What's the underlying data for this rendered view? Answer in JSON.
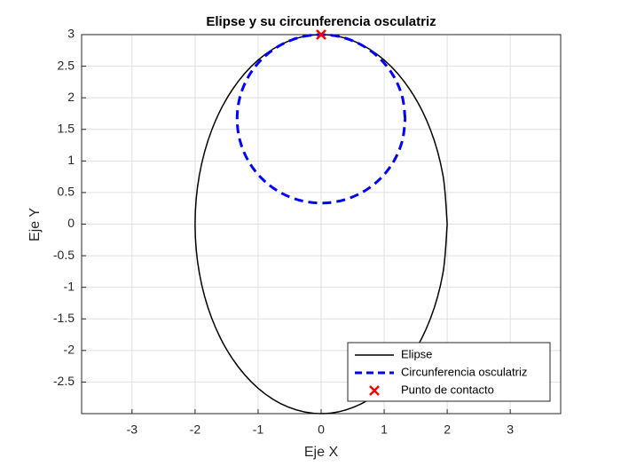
{
  "chart_data": {
    "type": "line",
    "title": "Elipse y su circunferencia osculatriz",
    "xlabel": "Eje X",
    "ylabel": "Eje Y",
    "xlim": [
      -3.8,
      3.8
    ],
    "ylim": [
      -3,
      3
    ],
    "xticks": [
      -3,
      -2,
      -1,
      0,
      1,
      2,
      3
    ],
    "yticks": [
      -2.5,
      -2,
      -1.5,
      -1,
      -0.5,
      0,
      0.5,
      1,
      1.5,
      2,
      2.5,
      3
    ],
    "grid": true,
    "legend": "lower right",
    "series": [
      {
        "name": "Elipse",
        "color": "#000000",
        "style": "solid",
        "width": 1.5,
        "x": [
          2,
          1.932,
          1.732,
          1.414,
          1,
          0.518,
          0,
          -0.518,
          -1,
          -1.414,
          -1.732,
          -1.932,
          -2,
          -1.932,
          -1.732,
          -1.414,
          -1,
          -0.518,
          0,
          0.518,
          1,
          1.414,
          1.732,
          1.932,
          2
        ],
        "y": [
          0,
          0.776,
          1.5,
          2.121,
          2.598,
          2.898,
          3,
          2.898,
          2.598,
          2.121,
          1.5,
          0.776,
          0,
          -0.776,
          -1.5,
          -2.121,
          -2.598,
          -2.898,
          -3,
          -2.898,
          -2.598,
          -2.121,
          -1.5,
          -0.776,
          0
        ]
      },
      {
        "name": "Circunferencia osculatriz",
        "color": "#0000ff",
        "style": "dashed",
        "width": 3,
        "x": [
          1.333,
          1.288,
          1.155,
          0.943,
          0.667,
          0.345,
          0,
          -0.345,
          -0.667,
          -0.943,
          -1.155,
          -1.288,
          -1.333,
          -1.288,
          -1.155,
          -0.943,
          -0.667,
          -0.345,
          0,
          0.345,
          0.667,
          0.943,
          1.155,
          1.288,
          1.333
        ],
        "y": [
          1.667,
          2.012,
          2.333,
          2.61,
          2.821,
          2.955,
          3,
          2.955,
          2.821,
          2.61,
          2.333,
          2.012,
          1.667,
          1.322,
          1,
          0.724,
          0.512,
          0.379,
          0.333,
          0.379,
          0.512,
          0.724,
          1,
          1.322,
          1.667
        ]
      },
      {
        "name": "Punto de contacto",
        "color": "#ff0000",
        "style": "marker",
        "marker": "x",
        "width": 2.5,
        "x": [
          0
        ],
        "y": [
          3
        ]
      }
    ]
  }
}
